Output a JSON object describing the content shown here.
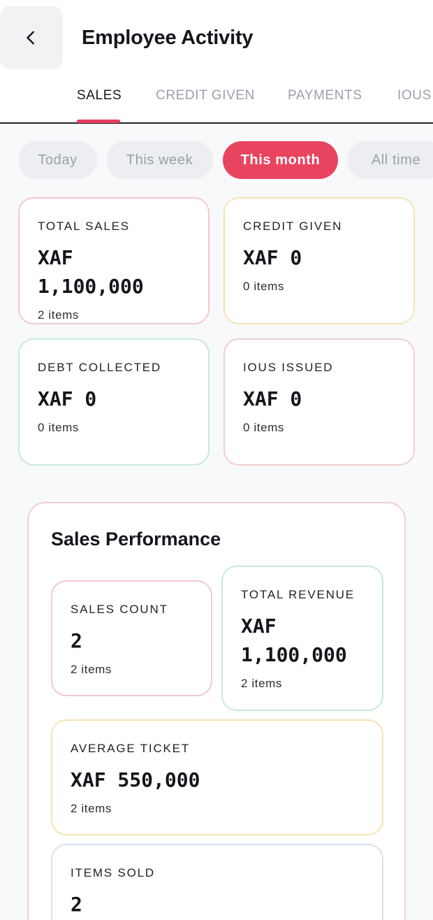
{
  "header": {
    "title": "Employee Activity",
    "back_icon": "chevron-left-icon"
  },
  "tabs": [
    {
      "label": "SALES",
      "active": true
    },
    {
      "label": "CREDIT GIVEN",
      "active": false
    },
    {
      "label": "PAYMENTS",
      "active": false
    },
    {
      "label": "IOUS",
      "active": false
    }
  ],
  "period_filters": [
    {
      "label": "Today",
      "active": false
    },
    {
      "label": "This week",
      "active": false
    },
    {
      "label": "This month",
      "active": true
    },
    {
      "label": "All time",
      "active": false
    }
  ],
  "summary_cards": [
    {
      "label": "TOTAL SALES",
      "value": "XAF\n1,100,000",
      "sub": "2 items"
    },
    {
      "label": "CREDIT GIVEN",
      "value": "XAF 0",
      "sub": "0 items"
    },
    {
      "label": "DEBT COLLECTED",
      "value": "XAF 0",
      "sub": "0 items"
    },
    {
      "label": "IOUS ISSUED",
      "value": "XAF 0",
      "sub": "0 items"
    }
  ],
  "performance": {
    "title": "Sales Performance",
    "cards": [
      {
        "label": "SALES COUNT",
        "value": "2",
        "sub": "2 items"
      },
      {
        "label": "TOTAL REVENUE",
        "value": "XAF\n1,100,000",
        "sub": "2 items"
      },
      {
        "label": "AVERAGE TICKET",
        "value": "XAF 550,000",
        "sub": "2 items"
      },
      {
        "label": "ITEMS SOLD",
        "value": "2",
        "sub": ""
      }
    ]
  },
  "colors": {
    "accent": "#e8445f",
    "tab_inactive": "#9aa0aa",
    "background": "#f8f9fb"
  }
}
